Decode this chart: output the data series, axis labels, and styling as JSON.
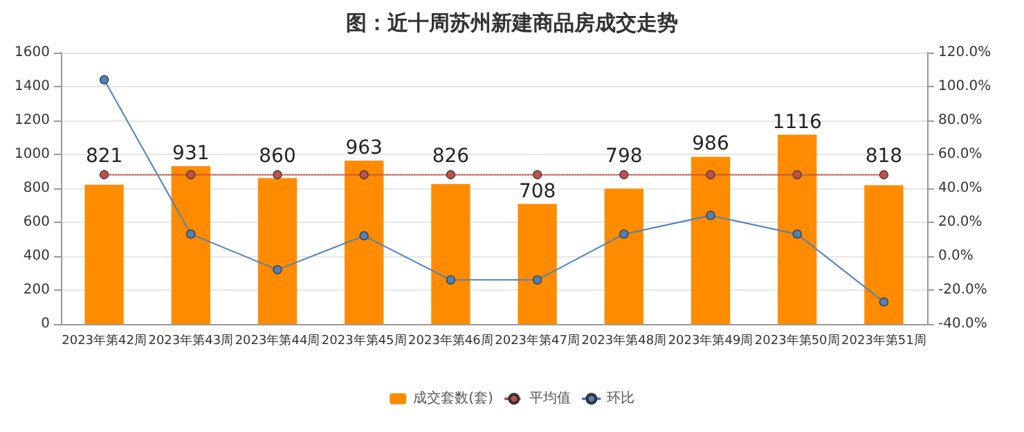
{
  "chart_data": {
    "type": "bar",
    "title": "图：近十周苏州新建商品房成交走势",
    "categories": [
      "2023年第42周",
      "2023年第43周",
      "2023年第44周",
      "2023年第45周",
      "2023年第46周",
      "2023年第47周",
      "2023年第48周",
      "2023年第49周",
      "2023年第50周",
      "2023年第51周"
    ],
    "series": [
      {
        "name": "成交套数(套)",
        "color": "#ff8c00",
        "values": [
          821,
          931,
          860,
          963,
          826,
          708,
          798,
          986,
          1116,
          818
        ],
        "data_labels": true
      },
      {
        "name": "平均值",
        "type": "line",
        "color": "#c0504d",
        "marker": "circle",
        "line_style": "dotted",
        "values": [
          880,
          880,
          880,
          880,
          880,
          880,
          880,
          880,
          880,
          880
        ]
      },
      {
        "name": "环比",
        "type": "line",
        "axis": "y2",
        "color": "#4f81bd",
        "marker": "circle",
        "line_style": "solid",
        "values": [
          104,
          13,
          -8,
          12,
          -14,
          -14,
          13,
          24,
          13,
          -27
        ]
      }
    ],
    "ylim": [
      0,
      1600
    ],
    "yticks": [
      0,
      200,
      400,
      600,
      800,
      1000,
      1200,
      1400,
      1600
    ],
    "y2lim": [
      -40,
      120
    ],
    "y2ticks": [
      {
        "value": -40,
        "label": "-40.0%"
      },
      {
        "value": -20,
        "label": "-20.0%"
      },
      {
        "value": 0,
        "label": "0.0%"
      },
      {
        "value": 20,
        "label": "20.0%"
      },
      {
        "value": 40,
        "label": "40.0%"
      },
      {
        "value": 60,
        "label": "60.0%"
      },
      {
        "value": 80,
        "label": "80.0%"
      },
      {
        "value": 100,
        "label": "100.0%"
      },
      {
        "value": 120,
        "label": "120.0%"
      }
    ],
    "grid": "y",
    "legend": "bottom"
  }
}
